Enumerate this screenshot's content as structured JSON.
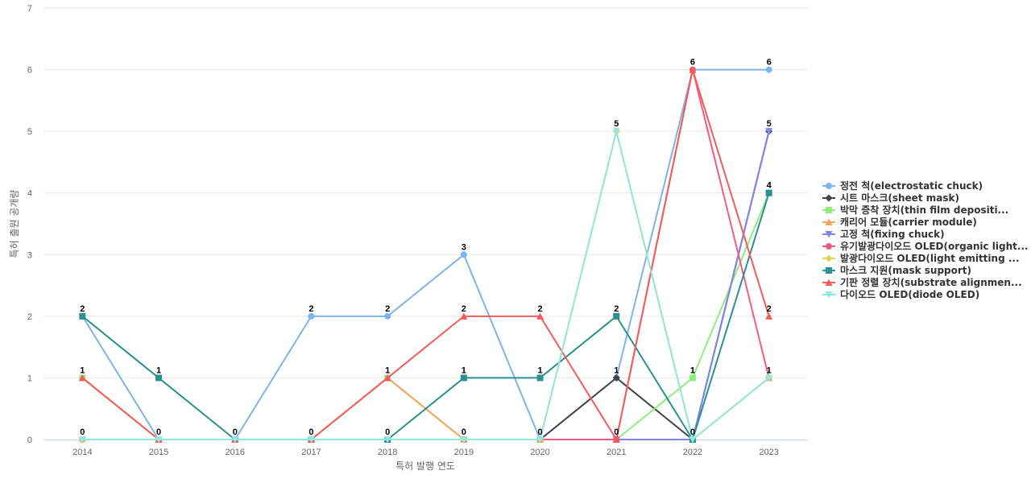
{
  "chart_data": {
    "type": "line",
    "xlabel": "특허 발행 연도",
    "ylabel": "특허 출원 공개량",
    "ylim": [
      0,
      7
    ],
    "yticks": [
      0,
      1,
      2,
      3,
      4,
      5,
      6,
      7
    ],
    "categories": [
      "2014",
      "2015",
      "2016",
      "2017",
      "2018",
      "2019",
      "2020",
      "2021",
      "2022",
      "2023"
    ],
    "grid": true,
    "legend_position": "right",
    "series": [
      {
        "name": "정전 척(electrostatic chuck)",
        "color": "#7cb5ec",
        "marker": "circle",
        "values": [
          2,
          0,
          0,
          2,
          2,
          3,
          0,
          1,
          6,
          6
        ]
      },
      {
        "name": "시트 마스크(sheet mask)",
        "color": "#434348",
        "marker": "diamond",
        "values": [
          0,
          0,
          0,
          0,
          0,
          0,
          0,
          1,
          0,
          5
        ]
      },
      {
        "name": "박막 증착 장치(thin film depositi...",
        "color": "#90ed7d",
        "marker": "square",
        "values": [
          1,
          0,
          0,
          0,
          1,
          0,
          0,
          0,
          1,
          4
        ]
      },
      {
        "name": "캐리어 모듈(carrier module)",
        "color": "#f7a35c",
        "marker": "triangle",
        "values": [
          1,
          0,
          0,
          0,
          1,
          0,
          0,
          0,
          0,
          1
        ]
      },
      {
        "name": "고정 척(fixing chuck)",
        "color": "#8085e9",
        "marker": "triangle-down",
        "values": [
          0,
          0,
          0,
          0,
          0,
          0,
          0,
          0,
          0,
          5
        ]
      },
      {
        "name": "유기발광다이오드 OLED(organic light...",
        "color": "#f15c80",
        "marker": "circle",
        "values": [
          0,
          0,
          0,
          0,
          0,
          0,
          0,
          0,
          6,
          1
        ]
      },
      {
        "name": "발광다이오드 OLED(light emitting ...",
        "color": "#e4d354",
        "marker": "diamond",
        "values": [
          0,
          0,
          0,
          0,
          0,
          0,
          0,
          5,
          0,
          1
        ]
      },
      {
        "name": "마스크 지원(mask support)",
        "color": "#2b908f",
        "marker": "square",
        "values": [
          2,
          1,
          0,
          0,
          0,
          1,
          1,
          2,
          0,
          4
        ]
      },
      {
        "name": "기판 정렬 장치(substrate alignmen...",
        "color": "#f45b5b",
        "marker": "triangle",
        "values": [
          1,
          0,
          0,
          0,
          1,
          2,
          2,
          0,
          6,
          2
        ]
      },
      {
        "name": "다이오드 OLED(diode OLED)",
        "color": "#91e8e1",
        "marker": "triangle-down",
        "values": [
          0,
          0,
          0,
          0,
          0,
          0,
          0,
          5,
          0,
          1
        ]
      }
    ],
    "data_labels": [
      {
        "x": "2014",
        "y": 2,
        "text": "2"
      },
      {
        "x": "2014",
        "y": 1,
        "text": "1"
      },
      {
        "x": "2014",
        "y": 0,
        "text": "0"
      },
      {
        "x": "2015",
        "y": 1,
        "text": "1"
      },
      {
        "x": "2015",
        "y": 0,
        "text": "0"
      },
      {
        "x": "2016",
        "y": 0,
        "text": "0"
      },
      {
        "x": "2017",
        "y": 2,
        "text": "2"
      },
      {
        "x": "2017",
        "y": 0,
        "text": "0"
      },
      {
        "x": "2018",
        "y": 2,
        "text": "2"
      },
      {
        "x": "2018",
        "y": 1,
        "text": "1"
      },
      {
        "x": "2018",
        "y": 0,
        "text": "0"
      },
      {
        "x": "2019",
        "y": 3,
        "text": "3"
      },
      {
        "x": "2019",
        "y": 2,
        "text": "2"
      },
      {
        "x": "2019",
        "y": 1,
        "text": "1"
      },
      {
        "x": "2019",
        "y": 0,
        "text": "0"
      },
      {
        "x": "2020",
        "y": 2,
        "text": "2"
      },
      {
        "x": "2020",
        "y": 1,
        "text": "1"
      },
      {
        "x": "2020",
        "y": 0,
        "text": "0"
      },
      {
        "x": "2021",
        "y": 5,
        "text": "5"
      },
      {
        "x": "2021",
        "y": 2,
        "text": "2"
      },
      {
        "x": "2021",
        "y": 1,
        "text": "1"
      },
      {
        "x": "2021",
        "y": 0,
        "text": "0"
      },
      {
        "x": "2022",
        "y": 6,
        "text": "6"
      },
      {
        "x": "2022",
        "y": 1,
        "text": "1"
      },
      {
        "x": "2022",
        "y": 0,
        "text": "0"
      },
      {
        "x": "2023",
        "y": 6,
        "text": "6"
      },
      {
        "x": "2023",
        "y": 5,
        "text": "5"
      },
      {
        "x": "2023",
        "y": 4,
        "text": "4"
      },
      {
        "x": "2023",
        "y": 2,
        "text": "2"
      },
      {
        "x": "2023",
        "y": 1,
        "text": "1"
      }
    ]
  }
}
